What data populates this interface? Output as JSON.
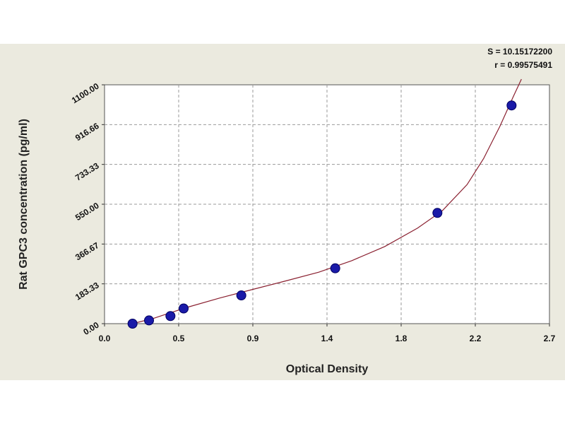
{
  "chart_data": {
    "type": "scatter",
    "xlabel": "Optical Density",
    "ylabel": "Rat GPC3 concentration (pg/ml)",
    "xlim": [
      0.0,
      2.7
    ],
    "ylim": [
      0.0,
      1100.0
    ],
    "x_ticks": [
      "0.0",
      "0.5",
      "0.9",
      "1.4",
      "1.8",
      "2.2",
      "2.7"
    ],
    "x_tick_values": [
      0.0,
      0.45,
      0.9,
      1.35,
      1.8,
      2.25,
      2.7
    ],
    "y_ticks": [
      "0.00",
      "183.33",
      "366.67",
      "550.00",
      "733.33",
      "916.66",
      "1100.00"
    ],
    "y_tick_values": [
      0.0,
      183.33,
      366.67,
      550.0,
      733.33,
      916.66,
      1100.0
    ],
    "grid": true,
    "annotations": [
      "S = 10.15172200",
      "r = 0.99575491"
    ],
    "series": [
      {
        "points": [
          {
            "x": 0.17,
            "y": 0
          },
          {
            "x": 0.27,
            "y": 15
          },
          {
            "x": 0.4,
            "y": 35
          },
          {
            "x": 0.48,
            "y": 70
          },
          {
            "x": 0.83,
            "y": 130
          },
          {
            "x": 1.4,
            "y": 255
          },
          {
            "x": 2.02,
            "y": 510
          },
          {
            "x": 2.47,
            "y": 1005
          }
        ]
      }
    ],
    "fit_curve": [
      [
        0.17,
        0
      ],
      [
        0.3,
        25
      ],
      [
        0.4,
        50
      ],
      [
        0.5,
        75
      ],
      [
        0.7,
        118
      ],
      [
        0.9,
        158
      ],
      [
        1.1,
        197
      ],
      [
        1.3,
        237
      ],
      [
        1.5,
        290
      ],
      [
        1.7,
        355
      ],
      [
        1.9,
        440
      ],
      [
        2.05,
        520
      ],
      [
        2.2,
        640
      ],
      [
        2.3,
        760
      ],
      [
        2.4,
        910
      ],
      [
        2.48,
        1045
      ],
      [
        2.53,
        1130
      ]
    ],
    "colors": {
      "background": "#ebeadf",
      "plot_area": "#ffffff",
      "grid": "#999999",
      "curve": "#8a2030",
      "marker_fill": "#1a1aa8",
      "marker_edge": "#000060"
    }
  }
}
